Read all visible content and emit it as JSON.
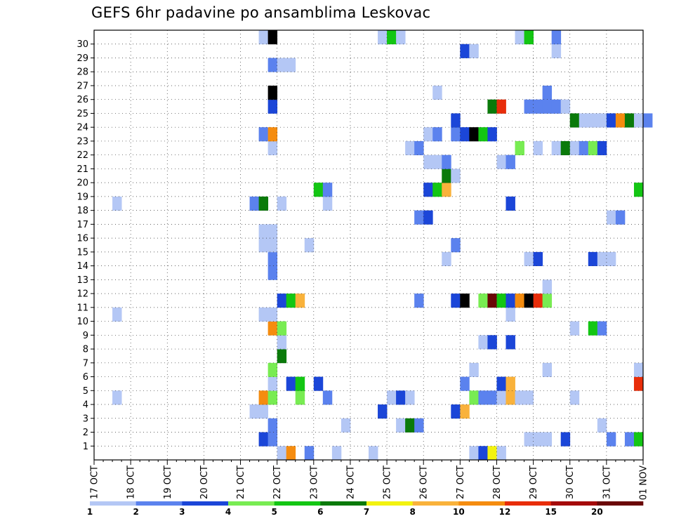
{
  "chart_data": {
    "type": "heatmap",
    "title": "GEFS 6hr padavine po ansamblima Leskovac",
    "xlabel": "",
    "ylabel": "",
    "x_ticks": [
      "17 OCT",
      "18 OCT",
      "19 OCT",
      "20 OCT",
      "21 OCT",
      "22 OCT",
      "23 OCT",
      "24 OCT",
      "25 OCT",
      "26 OCT",
      "27 OCT",
      "28 OCT",
      "29 OCT",
      "30 OCT",
      "31 OCT",
      "01 NOV"
    ],
    "y_ticks": [
      1,
      2,
      3,
      4,
      5,
      6,
      7,
      8,
      9,
      10,
      11,
      12,
      13,
      14,
      15,
      16,
      17,
      18,
      19,
      20,
      21,
      22,
      23,
      24,
      25,
      26,
      27,
      28,
      29,
      30
    ],
    "x_unit": "6-hour steps from 17 OCT 00Z",
    "grid": true,
    "colorbar": {
      "labels": [
        "1",
        "2",
        "3",
        "4",
        "5",
        "6",
        "7",
        "8",
        "10",
        "12",
        "15",
        "20"
      ],
      "colors": [
        "#b4c7f5",
        "#5b82ee",
        "#1b46d8",
        "#78ec52",
        "#13c613",
        "#0a7a0a",
        "#f3f30f",
        "#f9b23b",
        "#f58c0f",
        "#e82d0a",
        "#a50a0a",
        "#6a0707"
      ]
    },
    "cells": [
      [
        20,
        0,
        1
      ],
      [
        21,
        0,
        9
      ],
      [
        23,
        0,
        2
      ],
      [
        26,
        0,
        1
      ],
      [
        30,
        0,
        1
      ],
      [
        41,
        0,
        1
      ],
      [
        42,
        0,
        3
      ],
      [
        43,
        0,
        7
      ],
      [
        44,
        0,
        1
      ],
      [
        18,
        1,
        3
      ],
      [
        19,
        1,
        2
      ],
      [
        47,
        1,
        1
      ],
      [
        48,
        1,
        1
      ],
      [
        49,
        1,
        1
      ],
      [
        51,
        1,
        3
      ],
      [
        56,
        1,
        2
      ],
      [
        58,
        1,
        2
      ],
      [
        59,
        1,
        5
      ],
      [
        19,
        2,
        2
      ],
      [
        27,
        2,
        1
      ],
      [
        33,
        2,
        1
      ],
      [
        34,
        2,
        6
      ],
      [
        35,
        2,
        2
      ],
      [
        55,
        2,
        1
      ],
      [
        17,
        3,
        1
      ],
      [
        18,
        3,
        1
      ],
      [
        31,
        3,
        3
      ],
      [
        39,
        3,
        3
      ],
      [
        40,
        3,
        8
      ],
      [
        2,
        4,
        1
      ],
      [
        18,
        4,
        9
      ],
      [
        19,
        4,
        4
      ],
      [
        22,
        4,
        4
      ],
      [
        25,
        4,
        2
      ],
      [
        32,
        4,
        1
      ],
      [
        33,
        4,
        3
      ],
      [
        34,
        4,
        1
      ],
      [
        41,
        4,
        4
      ],
      [
        42,
        4,
        2
      ],
      [
        43,
        4,
        2
      ],
      [
        44,
        4,
        1
      ],
      [
        45,
        4,
        8
      ],
      [
        46,
        4,
        1
      ],
      [
        47,
        4,
        1
      ],
      [
        52,
        4,
        1
      ],
      [
        19,
        5,
        1
      ],
      [
        21,
        5,
        3
      ],
      [
        22,
        5,
        5
      ],
      [
        24,
        5,
        3
      ],
      [
        40,
        5,
        2
      ],
      [
        44,
        5,
        3
      ],
      [
        45,
        5,
        8
      ],
      [
        59,
        5,
        10
      ],
      [
        19,
        6,
        4
      ],
      [
        41,
        6,
        1
      ],
      [
        49,
        6,
        1
      ],
      [
        59,
        6,
        1
      ],
      [
        20,
        7,
        6
      ],
      [
        20,
        8,
        1
      ],
      [
        42,
        8,
        1
      ],
      [
        43,
        8,
        3
      ],
      [
        45,
        8,
        3
      ],
      [
        19,
        9,
        9
      ],
      [
        20,
        9,
        4
      ],
      [
        52,
        9,
        1
      ],
      [
        54,
        9,
        5
      ],
      [
        55,
        9,
        2
      ],
      [
        2,
        10,
        1
      ],
      [
        18,
        10,
        1
      ],
      [
        19,
        10,
        1
      ],
      [
        45,
        10,
        1
      ],
      [
        20,
        11,
        3
      ],
      [
        21,
        11,
        5
      ],
      [
        22,
        11,
        8
      ],
      [
        35,
        11,
        2
      ],
      [
        39,
        11,
        3
      ],
      [
        40,
        11,
        13
      ],
      [
        42,
        11,
        4
      ],
      [
        43,
        11,
        12
      ],
      [
        44,
        11,
        5
      ],
      [
        45,
        11,
        3
      ],
      [
        46,
        11,
        9
      ],
      [
        47,
        11,
        13
      ],
      [
        48,
        11,
        10
      ],
      [
        49,
        11,
        4
      ],
      [
        49,
        12,
        1
      ],
      [
        19,
        13,
        2
      ],
      [
        19,
        14,
        2
      ],
      [
        38,
        14,
        1
      ],
      [
        47,
        14,
        1
      ],
      [
        48,
        14,
        3
      ],
      [
        54,
        14,
        3
      ],
      [
        55,
        14,
        1
      ],
      [
        56,
        14,
        1
      ],
      [
        18,
        15,
        1
      ],
      [
        19,
        15,
        1
      ],
      [
        23,
        15,
        1
      ],
      [
        39,
        15,
        2
      ],
      [
        18,
        16,
        1
      ],
      [
        19,
        16,
        1
      ],
      [
        35,
        17,
        2
      ],
      [
        36,
        17,
        3
      ],
      [
        56,
        17,
        1
      ],
      [
        57,
        17,
        2
      ],
      [
        2,
        18,
        1
      ],
      [
        17,
        18,
        2
      ],
      [
        18,
        18,
        6
      ],
      [
        20,
        18,
        1
      ],
      [
        25,
        18,
        1
      ],
      [
        45,
        18,
        3
      ],
      [
        24,
        19,
        5
      ],
      [
        25,
        19,
        2
      ],
      [
        36,
        19,
        3
      ],
      [
        37,
        19,
        5
      ],
      [
        38,
        19,
        8
      ],
      [
        59,
        19,
        5
      ],
      [
        38,
        20,
        6
      ],
      [
        39,
        20,
        1
      ],
      [
        36,
        21,
        1
      ],
      [
        37,
        21,
        1
      ],
      [
        38,
        21,
        2
      ],
      [
        44,
        21,
        1
      ],
      [
        45,
        21,
        2
      ],
      [
        19,
        22,
        1
      ],
      [
        34,
        22,
        1
      ],
      [
        35,
        22,
        2
      ],
      [
        46,
        22,
        4
      ],
      [
        48,
        22,
        1
      ],
      [
        50,
        22,
        1
      ],
      [
        51,
        22,
        6
      ],
      [
        52,
        22,
        1
      ],
      [
        53,
        22,
        2
      ],
      [
        54,
        22,
        4
      ],
      [
        55,
        22,
        3
      ],
      [
        18,
        23,
        2
      ],
      [
        19,
        23,
        9
      ],
      [
        36,
        23,
        1
      ],
      [
        37,
        23,
        2
      ],
      [
        39,
        23,
        2
      ],
      [
        40,
        23,
        3
      ],
      [
        41,
        23,
        15
      ],
      [
        42,
        23,
        5
      ],
      [
        43,
        23,
        3
      ],
      [
        39,
        24,
        3
      ],
      [
        52,
        24,
        6
      ],
      [
        53,
        24,
        1
      ],
      [
        54,
        24,
        1
      ],
      [
        55,
        24,
        1
      ],
      [
        56,
        24,
        3
      ],
      [
        57,
        24,
        9
      ],
      [
        58,
        24,
        6
      ],
      [
        59,
        24,
        1
      ],
      [
        60,
        24,
        2
      ],
      [
        19,
        25,
        3
      ],
      [
        43,
        25,
        6
      ],
      [
        44,
        25,
        10
      ],
      [
        47,
        25,
        2
      ],
      [
        48,
        25,
        2
      ],
      [
        49,
        25,
        2
      ],
      [
        50,
        25,
        2
      ],
      [
        51,
        25,
        1
      ],
      [
        19,
        26,
        13
      ],
      [
        37,
        26,
        1
      ],
      [
        49,
        26,
        2
      ],
      [
        19,
        28,
        2
      ],
      [
        20,
        28,
        1
      ],
      [
        21,
        28,
        1
      ],
      [
        40,
        29,
        3
      ],
      [
        41,
        29,
        1
      ],
      [
        50,
        29,
        1
      ],
      [
        18,
        30,
        1
      ],
      [
        19,
        30,
        13
      ],
      [
        31,
        30,
        1
      ],
      [
        32,
        30,
        5
      ],
      [
        33,
        30,
        1
      ],
      [
        46,
        30,
        1
      ],
      [
        47,
        30,
        5
      ],
      [
        50,
        30,
        2
      ]
    ]
  }
}
